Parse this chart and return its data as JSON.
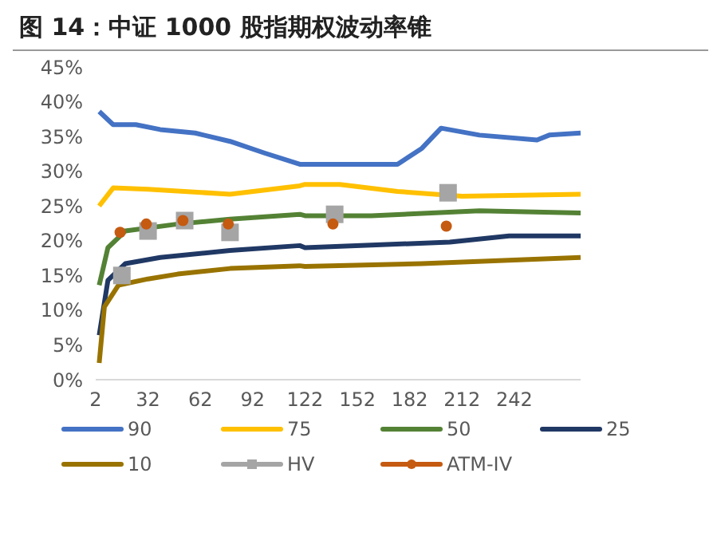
{
  "chart_data": {
    "type": "line",
    "title": "图 14：中证 1000 股指期权波动率锥",
    "xlim": [
      2,
      280
    ],
    "xticks": [
      2,
      32,
      62,
      92,
      122,
      152,
      182,
      212,
      242
    ],
    "ylim": [
      0,
      45
    ],
    "yticks": [
      {
        "value": 0,
        "label": "0%"
      },
      {
        "value": 5,
        "label": "5%"
      },
      {
        "value": 10,
        "label": "10%"
      },
      {
        "value": 15,
        "label": "15%"
      },
      {
        "value": 20,
        "label": "20%"
      },
      {
        "value": 25,
        "label": "25%"
      },
      {
        "value": 30,
        "label": "30%"
      },
      {
        "value": 35,
        "label": "35%"
      },
      {
        "value": 40,
        "label": "40%"
      },
      {
        "value": 45,
        "label": "45%"
      }
    ],
    "grid": false,
    "legend": "bottom",
    "marker": "none",
    "series": [
      {
        "name": "90",
        "color": "#4472c4",
        "x": [
          4,
          12,
          25,
          39,
          59,
          79,
          99,
          119,
          122,
          150,
          175,
          189,
          200,
          222,
          255,
          262,
          280
        ],
        "values": [
          38.6,
          36.7,
          36.7,
          36,
          35.5,
          34.3,
          32.6,
          31,
          31,
          31,
          31,
          33.3,
          36.2,
          35.2,
          34.5,
          35.2,
          35.5
        ]
      },
      {
        "name": "75",
        "color": "#ffc000",
        "x": [
          4,
          12,
          32,
          79,
          119,
          122,
          142,
          175,
          212,
          280
        ],
        "values": [
          25,
          27.6,
          27.4,
          26.7,
          27.9,
          28.1,
          28.1,
          27.1,
          26.4,
          26.7
        ]
      },
      {
        "name": "50",
        "color": "#548235",
        "x": [
          4,
          9,
          19,
          49,
          79,
          119,
          122,
          160,
          222,
          280
        ],
        "values": [
          13.6,
          19,
          21.4,
          22.4,
          23.1,
          23.8,
          23.6,
          23.6,
          24.3,
          24
        ]
      },
      {
        "name": "25",
        "color": "#203864",
        "x": [
          4,
          9,
          19,
          39,
          79,
          119,
          122,
          205,
          239,
          280
        ],
        "values": [
          6.4,
          14.3,
          16.7,
          17.6,
          18.6,
          19.3,
          19,
          19.8,
          20.7,
          20.7
        ]
      },
      {
        "name": "10",
        "color": "#997300",
        "x": [
          4,
          7,
          15,
          32,
          49,
          79,
          119,
          122,
          189,
          280
        ],
        "values": [
          2.4,
          10.5,
          13.6,
          14.5,
          15.2,
          16,
          16.4,
          16.3,
          16.7,
          17.6
        ]
      },
      {
        "name": "HV",
        "type": "scatter",
        "marker": "square",
        "color": "#a5a5a5",
        "x": [
          17,
          32,
          53,
          79,
          139,
          204
        ],
        "values": [
          15,
          21.4,
          22.9,
          21.2,
          23.8,
          26.9
        ]
      },
      {
        "name": "ATM-IV",
        "type": "scatter",
        "marker": "circle",
        "color": "#c55a11",
        "x": [
          16,
          31,
          52,
          78,
          138,
          203
        ],
        "values": [
          21.2,
          22.4,
          22.9,
          22.4,
          22.4,
          22.1
        ]
      }
    ]
  }
}
